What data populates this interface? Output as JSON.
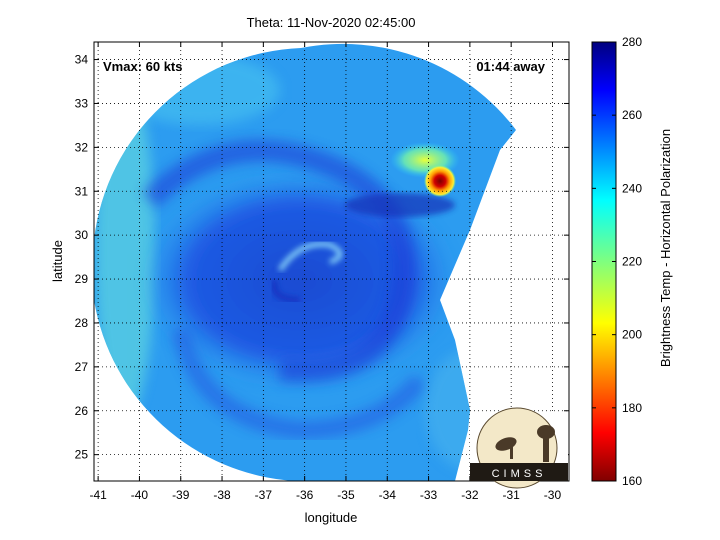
{
  "chart_data": {
    "type": "heatmap",
    "title": "Theta: 11-Nov-2020 02:45:00",
    "xlabel": "longitude",
    "ylabel": "latitude",
    "xlim": [
      -41.1,
      -29.6
    ],
    "ylim": [
      24.4,
      34.4
    ],
    "xticks": [
      -41,
      -40,
      -39,
      -38,
      -37,
      -36,
      -35,
      -34,
      -33,
      -32,
      -31,
      -30
    ],
    "yticks": [
      25,
      26,
      27,
      28,
      29,
      30,
      31,
      32,
      33,
      34
    ],
    "grid": "dotted",
    "annotations": {
      "left": "Vmax: 60 kts",
      "right": "01:44 away"
    },
    "storm_center": {
      "lon": -35.6,
      "lat": 29.4
    },
    "cold_cloud_feature": {
      "lon": -32.8,
      "lat": 31.2,
      "min_temp": 165
    },
    "colorbar": {
      "label": "Brightness Temp - Horizontal Polarization",
      "min": 160,
      "max": 280,
      "ticks": [
        160,
        180,
        200,
        220,
        240,
        260,
        280
      ],
      "colormap": "jet"
    },
    "logo_text": "CIMSS"
  },
  "colors": {
    "background_field": "#2a9bf0",
    "warm_ring": "#1a3fd8",
    "cold_core": "#8a0000"
  }
}
